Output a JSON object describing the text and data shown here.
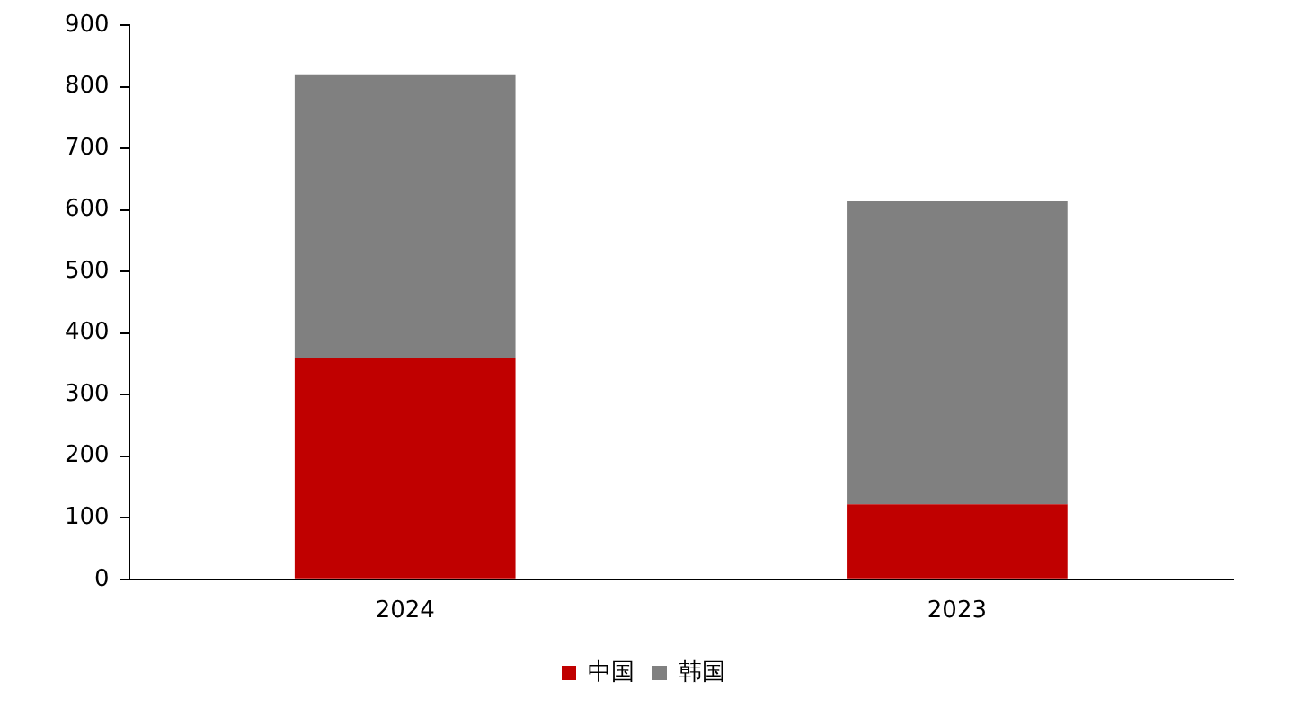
{
  "chart_data": {
    "type": "bar",
    "stacked": true,
    "categories": [
      "2024",
      "2023"
    ],
    "series": [
      {
        "name": "中国",
        "color": "#c00000",
        "values": [
          360,
          122
        ]
      },
      {
        "name": "韩国",
        "color": "#808080",
        "values": [
          460,
          492
        ]
      }
    ],
    "ylim": [
      0,
      900
    ],
    "yticks": [
      0,
      100,
      200,
      300,
      400,
      500,
      600,
      700,
      800,
      900
    ],
    "grid": false,
    "legend": "bottom"
  }
}
